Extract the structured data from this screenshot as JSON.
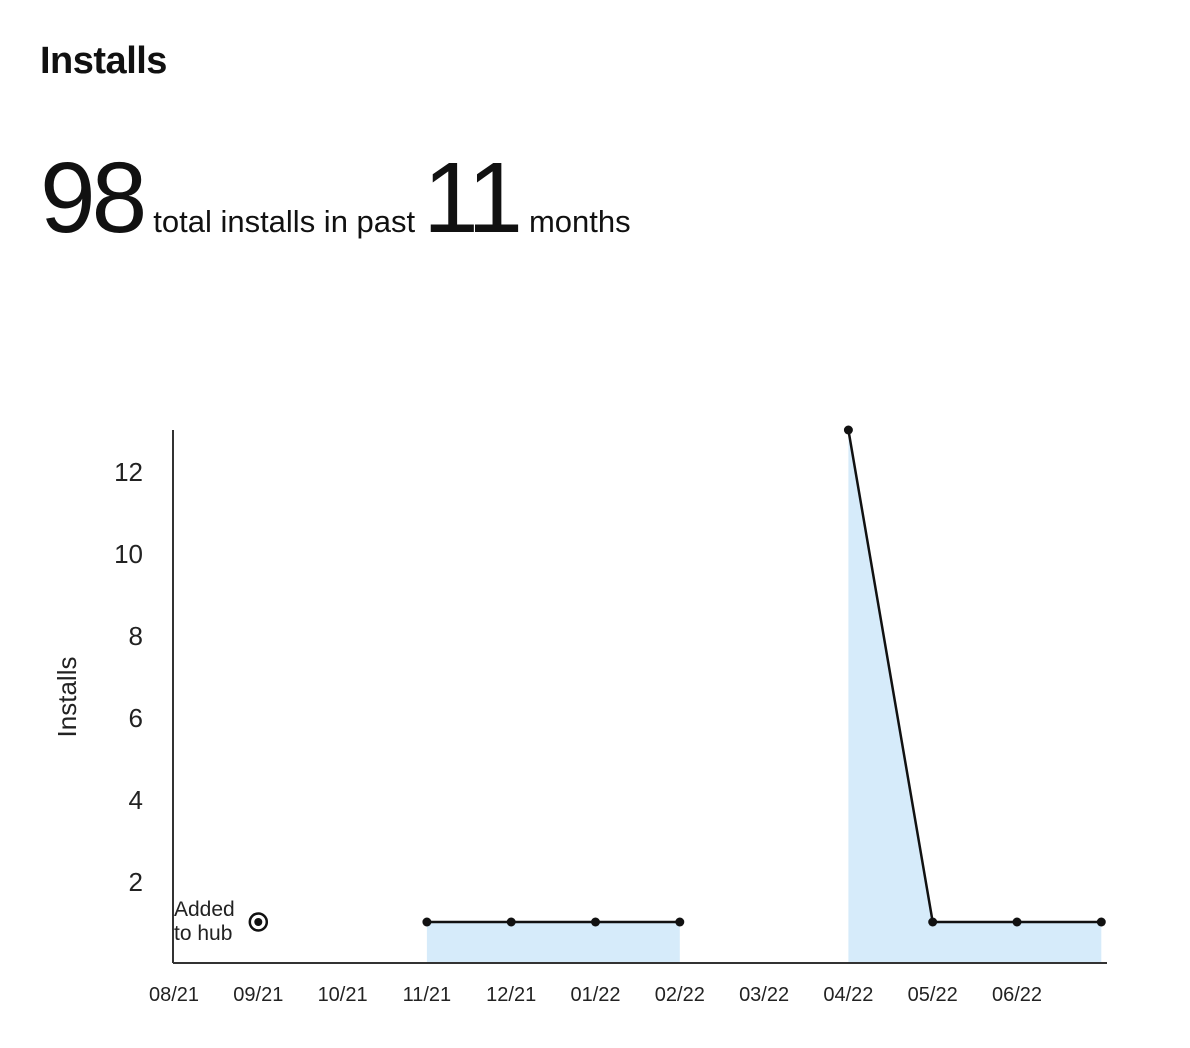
{
  "page": {
    "title": "Installs"
  },
  "summary": {
    "total_installs": "98",
    "installs_text": "total installs in past",
    "months": "11",
    "months_text": "months"
  },
  "chart_data": {
    "type": "line",
    "ylabel": "Installs",
    "xlabel": "",
    "ylim": [
      0,
      13
    ],
    "yticks": [
      2,
      4,
      6,
      8,
      10,
      12
    ],
    "x_tick_labels": [
      "08/21",
      "09/21",
      "10/21",
      "11/21",
      "12/21",
      "01/22",
      "02/22",
      "03/22",
      "04/22",
      "05/22",
      "06/22"
    ],
    "points": [
      {
        "x": "11/21",
        "y": 1
      },
      {
        "x": "12/21",
        "y": 1
      },
      {
        "x": "01/22",
        "y": 1
      },
      {
        "x": "02/22",
        "y": 1
      },
      {
        "x": "04/22",
        "y": 13
      },
      {
        "x": "05/22",
        "y": 1
      },
      {
        "x": "06/22",
        "y": 1
      },
      {
        "x": "07/22",
        "y": 1
      }
    ],
    "segments": [
      [
        0,
        1,
        2,
        3
      ],
      [
        4,
        5,
        6,
        7
      ]
    ],
    "annotation": {
      "line1": "Added",
      "line2": "to hub",
      "x": "09/21",
      "y": 1
    },
    "colors": {
      "line": "#111111",
      "fill": "#d6ebfa",
      "axis": "#333333"
    }
  }
}
